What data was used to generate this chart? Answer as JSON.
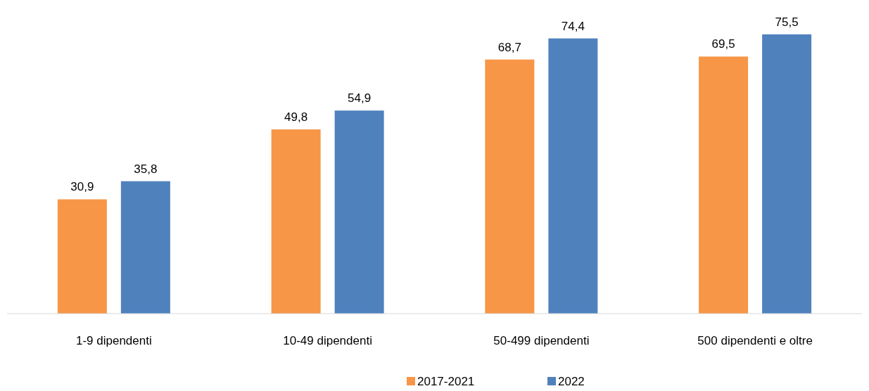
{
  "chart_data": {
    "type": "bar",
    "categories": [
      "1-9 dipendenti",
      "10-49 dipendenti",
      "50-499 dipendenti",
      "500 dipendenti e oltre"
    ],
    "series": [
      {
        "name": "2017-2021",
        "color": "#f79646",
        "values": [
          30.9,
          49.8,
          68.7,
          69.5
        ],
        "value_labels": [
          "30,9",
          "49,8",
          "68,7",
          "69,5"
        ]
      },
      {
        "name": "2022",
        "color": "#4f81bd",
        "values": [
          35.8,
          54.9,
          74.4,
          75.5
        ],
        "value_labels": [
          "35,8",
          "54,9",
          "74,4",
          "75,5"
        ]
      }
    ],
    "legend": "bottom"
  }
}
